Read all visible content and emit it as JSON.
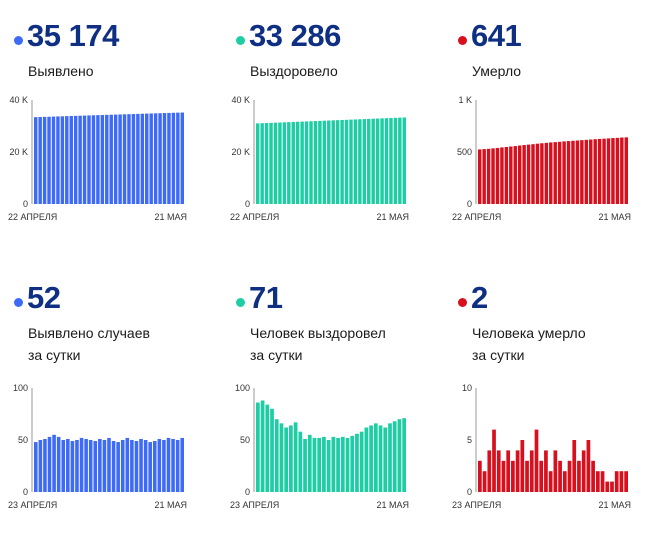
{
  "colors": {
    "blue": "#3d6af7",
    "green": "#1ecda4",
    "red": "#d8101e",
    "value_text": "#0f2f82"
  },
  "panels": [
    {
      "value": "35 174",
      "label_lines": [
        "Выявлено"
      ]
    },
    {
      "value": "33 286",
      "label_lines": [
        "Выздоровело"
      ]
    },
    {
      "value": "641",
      "label_lines": [
        "Умерло"
      ]
    },
    {
      "value": "52",
      "label_lines": [
        "Выявлено случаев",
        "за сутки"
      ]
    },
    {
      "value": "71",
      "label_lines": [
        "Человек выздоровел",
        "за сутки"
      ]
    },
    {
      "value": "2",
      "label_lines": [
        "Человека умерло",
        "за сутки"
      ]
    }
  ],
  "chart_data": [
    {
      "type": "bar",
      "color": "blue",
      "ylim": [
        0,
        40000
      ],
      "y_ticks": [
        {
          "value": 0,
          "label": "0"
        },
        {
          "value": 20000,
          "label": "20 K"
        },
        {
          "value": 40000,
          "label": "40 K"
        }
      ],
      "x_labels": [
        "22 АПРЕЛЯ",
        "21 МАЯ"
      ],
      "values": [
        33400,
        33450,
        33500,
        33560,
        33620,
        33680,
        33740,
        33800,
        33850,
        33900,
        33960,
        34010,
        34070,
        34120,
        34180,
        34230,
        34290,
        34340,
        34390,
        34440,
        34500,
        34550,
        34600,
        34660,
        34710,
        34760,
        34820,
        34870,
        34920,
        34980,
        35030,
        35080,
        35140,
        35174
      ]
    },
    {
      "type": "bar",
      "color": "green",
      "ylim": [
        0,
        40000
      ],
      "y_ticks": [
        {
          "value": 0,
          "label": "0"
        },
        {
          "value": 20000,
          "label": "20 K"
        },
        {
          "value": 40000,
          "label": "40 K"
        }
      ],
      "x_labels": [
        "22 АПРЕЛЯ",
        "21 МАЯ"
      ],
      "values": [
        31000,
        31070,
        31140,
        31210,
        31280,
        31350,
        31420,
        31490,
        31560,
        31630,
        31690,
        31760,
        31830,
        31900,
        31970,
        32040,
        32110,
        32180,
        32250,
        32320,
        32380,
        32450,
        32520,
        32590,
        32660,
        32730,
        32800,
        32870,
        32940,
        33010,
        33080,
        33150,
        33220,
        33286
      ]
    },
    {
      "type": "bar",
      "color": "red",
      "ylim": [
        0,
        1000
      ],
      "y_ticks": [
        {
          "value": 0,
          "label": "0"
        },
        {
          "value": 500,
          "label": "500"
        },
        {
          "value": 1000,
          "label": "1 K"
        }
      ],
      "x_labels": [
        "22 АПРЕЛЯ",
        "21 МАЯ"
      ],
      "values": [
        525,
        528,
        531,
        535,
        539,
        544,
        548,
        553,
        557,
        562,
        567,
        571,
        575,
        580,
        584,
        588,
        592,
        595,
        598,
        602,
        605,
        608,
        611,
        614,
        617,
        620,
        623,
        626,
        628,
        631,
        634,
        636,
        639,
        641
      ]
    },
    {
      "type": "bar",
      "color": "blue",
      "ylim": [
        0,
        100
      ],
      "y_ticks": [
        {
          "value": 0,
          "label": "0"
        },
        {
          "value": 50,
          "label": "50"
        },
        {
          "value": 100,
          "label": "100"
        }
      ],
      "x_labels": [
        "23 АПРЕЛЯ",
        "21 МАЯ"
      ],
      "values": [
        48,
        50,
        51,
        53,
        55,
        53,
        50,
        51,
        49,
        50,
        52,
        51,
        50,
        49,
        51,
        50,
        52,
        49,
        48,
        50,
        52,
        50,
        49,
        51,
        50,
        48,
        49,
        51,
        50,
        52,
        51,
        50,
        52
      ]
    },
    {
      "type": "bar",
      "color": "green",
      "ylim": [
        0,
        100
      ],
      "y_ticks": [
        {
          "value": 0,
          "label": "0"
        },
        {
          "value": 50,
          "label": "50"
        },
        {
          "value": 100,
          "label": "100"
        }
      ],
      "x_labels": [
        "23 АПРЕЛЯ",
        "21 МАЯ"
      ],
      "values": [
        86,
        88,
        84,
        80,
        70,
        66,
        62,
        64,
        67,
        58,
        51,
        55,
        52,
        52,
        53,
        50,
        53,
        52,
        53,
        52,
        54,
        56,
        58,
        62,
        64,
        66,
        64,
        62,
        66,
        68,
        70,
        71
      ]
    },
    {
      "type": "bar",
      "color": "red",
      "ylim": [
        0,
        10
      ],
      "y_ticks": [
        {
          "value": 0,
          "label": "0"
        },
        {
          "value": 5,
          "label": "5"
        },
        {
          "value": 10,
          "label": "10"
        }
      ],
      "x_labels": [
        "23 АПРЕЛЯ",
        "21 МАЯ"
      ],
      "values": [
        3,
        2,
        4,
        6,
        4,
        3,
        4,
        3,
        4,
        5,
        3,
        4,
        6,
        3,
        4,
        2,
        4,
        3,
        2,
        3,
        5,
        3,
        4,
        5,
        3,
        2,
        2,
        1,
        1,
        2,
        2,
        2
      ]
    }
  ]
}
